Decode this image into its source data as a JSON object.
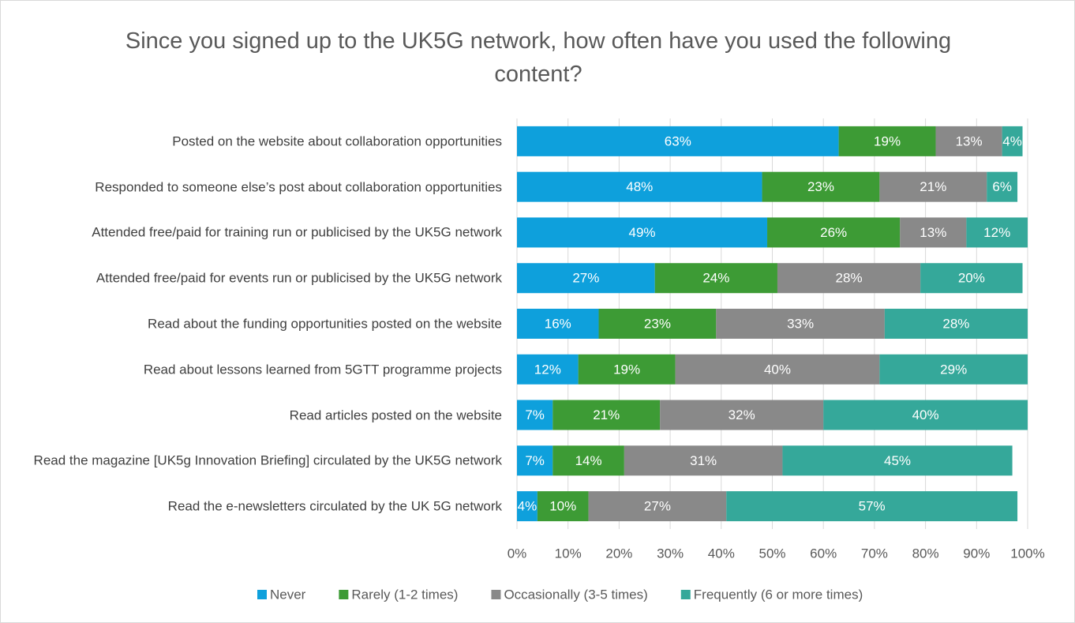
{
  "chart_data": {
    "type": "stacked_bar_horizontal",
    "title": "Since you signed up to the UK5G network, how often have you used the following content?",
    "categories": [
      "Posted on the website about collaboration opportunities",
      "Responded to someone else’s post about collaboration opportunities",
      "Attended free/paid for training run or publicised by the UK5G network",
      "Attended free/paid for events run or publicised by the UK5G network",
      "Read about the funding opportunities posted on the website",
      "Read about lessons learned from 5GTT programme projects",
      "Read articles posted on the website",
      "Read the magazine [UK5g Innovation Briefing] circulated by the UK5G network",
      "Read the e-newsletters circulated by the UK 5G network"
    ],
    "series": [
      {
        "name": "Never",
        "color": "#0ea0dc",
        "values": [
          63,
          48,
          49,
          27,
          16,
          12,
          7,
          7,
          4
        ],
        "value_labels": [
          "63%",
          "48%",
          "49%",
          "27%",
          "16%",
          "12%",
          "7%",
          "7%",
          "4%"
        ]
      },
      {
        "name": "Rarely (1-2 times)",
        "color": "#3d9b35",
        "values": [
          19,
          23,
          26,
          24,
          23,
          19,
          21,
          14,
          10
        ],
        "value_labels": [
          "19%",
          "23%",
          "26%",
          "24%",
          "23%",
          "19%",
          "21%",
          "14%",
          "10%"
        ]
      },
      {
        "name": "Occasionally (3-5 times)",
        "color": "#898989",
        "values": [
          13,
          21,
          13,
          28,
          33,
          40,
          32,
          31,
          27
        ],
        "value_labels": [
          "13%",
          "21%",
          "13%",
          "28%",
          "33%",
          "40%",
          "32%",
          "31%",
          "27%"
        ]
      },
      {
        "name": "Frequently (6 or more times)",
        "color": "#35a89a",
        "values": [
          4,
          6,
          12,
          20,
          28,
          29,
          40,
          45,
          57
        ],
        "value_labels": [
          "4%",
          "6%",
          "12%",
          "20%",
          "28%",
          "29%",
          "40%",
          "45%",
          "57%"
        ]
      }
    ],
    "xlim": [
      0,
      100
    ],
    "xticks": [
      {
        "value": 0,
        "label": "0%"
      },
      {
        "value": 10,
        "label": "10%"
      },
      {
        "value": 20,
        "label": "20%"
      },
      {
        "value": 30,
        "label": "30%"
      },
      {
        "value": 40,
        "label": "40%"
      },
      {
        "value": 50,
        "label": "50%"
      },
      {
        "value": 60,
        "label": "60%"
      },
      {
        "value": 70,
        "label": "70%"
      },
      {
        "value": 80,
        "label": "80%"
      },
      {
        "value": 90,
        "label": "90%"
      },
      {
        "value": 100,
        "label": "100%"
      }
    ],
    "grid": true,
    "legend": "bottom"
  }
}
